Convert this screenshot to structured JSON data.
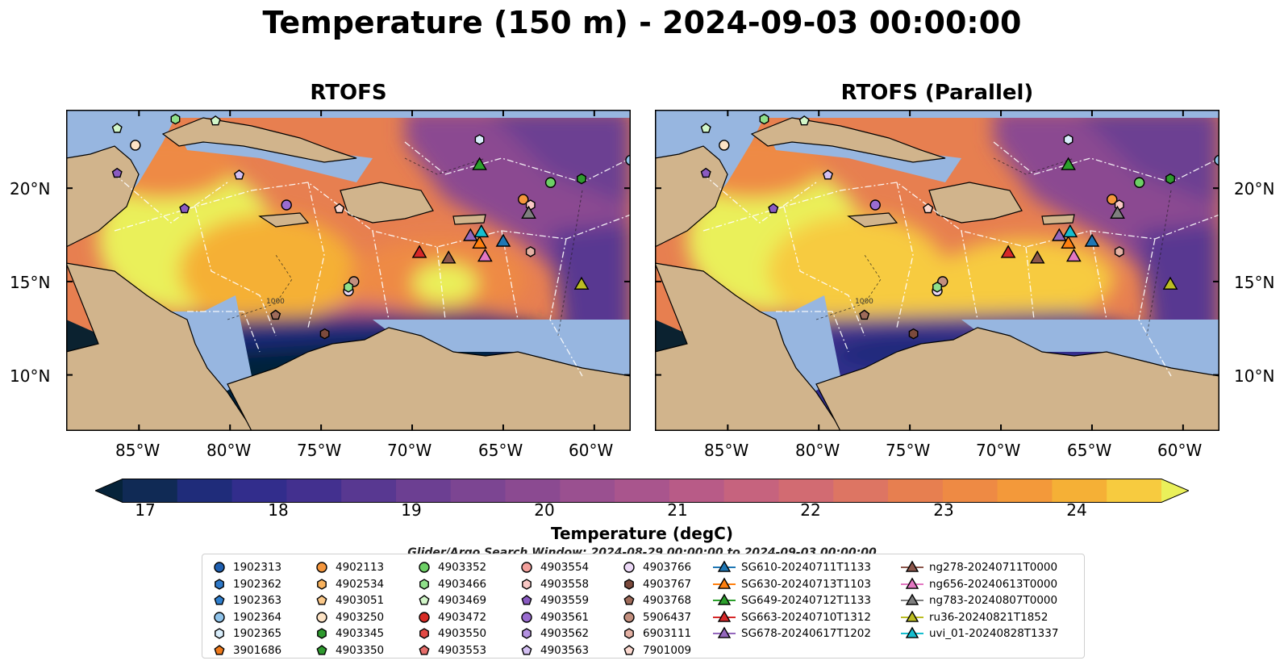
{
  "title": "Temperature (150 m) - 2024-09-03 00:00:00",
  "panels": [
    {
      "title": "RTOFS"
    },
    {
      "title": "RTOFS (Parallel)"
    }
  ],
  "axes": {
    "lon_labels": [
      "85°W",
      "80°W",
      "75°W",
      "70°W",
      "65°W",
      "60°W"
    ],
    "lat_labels": [
      "20°N",
      "15°N",
      "10°N"
    ]
  },
  "depth_contour_labels": [
    "1000"
  ],
  "colorbar": {
    "label": "Temperature (degC)",
    "ticks": [
      "17",
      "18",
      "19",
      "20",
      "21",
      "22",
      "23",
      "24"
    ],
    "range": [
      16.5,
      24.7
    ],
    "colors": [
      "#06233a",
      "#102a55",
      "#1f2c7a",
      "#322d8c",
      "#43308f",
      "#583891",
      "#6c3f92",
      "#7c4592",
      "#8b4a91",
      "#9a5090",
      "#a9558d",
      "#b85b87",
      "#c6637e",
      "#d26b72",
      "#dd7563",
      "#e77f50",
      "#ee8a44",
      "#f3993a",
      "#f5b036",
      "#f7cb3f",
      "#eaf05a"
    ],
    "extend": "both"
  },
  "search_window": "Glider/Argo Search Window: 2024-08-29 00:00:00 to 2024-09-03 00:00:00",
  "colors": {
    "land": "#d1b48c",
    "shelf": "#97b6e0",
    "deep_cold": "#0b2230"
  },
  "legend": {
    "columns": [
      [
        {
          "label": "1902313",
          "marker": "circle",
          "color": "#1f5fb0"
        },
        {
          "label": "1902362",
          "marker": "hexagon",
          "color": "#2e79c9"
        },
        {
          "label": "1902363",
          "marker": "pentagon",
          "color": "#2f7fce"
        },
        {
          "label": "1902364",
          "marker": "circle",
          "color": "#8fc3ea"
        },
        {
          "label": "1902365",
          "marker": "hexagon",
          "color": "#d9eefc"
        },
        {
          "label": "3901686",
          "marker": "pentagon",
          "color": "#ef7a1b"
        }
      ],
      [
        {
          "label": "4902113",
          "marker": "circle",
          "color": "#f4963d"
        },
        {
          "label": "4902534",
          "marker": "hexagon",
          "color": "#f8b25d"
        },
        {
          "label": "4903051",
          "marker": "pentagon",
          "color": "#fbc98a"
        },
        {
          "label": "4903250",
          "marker": "circle",
          "color": "#fde3c5"
        },
        {
          "label": "4903345",
          "marker": "hexagon",
          "color": "#2f9a2f"
        },
        {
          "label": "4903350",
          "marker": "pentagon",
          "color": "#2f9a2f"
        }
      ],
      [
        {
          "label": "4903352",
          "marker": "circle",
          "color": "#6ccf65"
        },
        {
          "label": "4903466",
          "marker": "hexagon",
          "color": "#8fe08a"
        },
        {
          "label": "4903469",
          "marker": "pentagon",
          "color": "#d2f6c9"
        },
        {
          "label": "4903472",
          "marker": "circle",
          "color": "#d72b24"
        },
        {
          "label": "4903550",
          "marker": "hexagon",
          "color": "#e34a45"
        },
        {
          "label": "4903553",
          "marker": "pentagon",
          "color": "#e66d6a"
        }
      ],
      [
        {
          "label": "4903554",
          "marker": "circle",
          "color": "#f3a09c"
        },
        {
          "label": "4903558",
          "marker": "hexagon",
          "color": "#f9c8c5"
        },
        {
          "label": "4903559",
          "marker": "pentagon",
          "color": "#8a5bc2"
        },
        {
          "label": "4903561",
          "marker": "circle",
          "color": "#9a6cd0"
        },
        {
          "label": "4903562",
          "marker": "hexagon",
          "color": "#b391e0"
        },
        {
          "label": "4903563",
          "marker": "pentagon",
          "color": "#d3bff2"
        }
      ],
      [
        {
          "label": "4903766",
          "marker": "circle",
          "color": "#ecd9f7"
        },
        {
          "label": "4903767",
          "marker": "hexagon",
          "color": "#7b4a3c"
        },
        {
          "label": "4903768",
          "marker": "pentagon",
          "color": "#9e6b5a"
        },
        {
          "label": "5906437",
          "marker": "circle",
          "color": "#c28f7e"
        },
        {
          "label": "6903111",
          "marker": "hexagon",
          "color": "#e4b1a4"
        },
        {
          "label": "7901009",
          "marker": "pentagon",
          "color": "#fbd8cf"
        }
      ],
      [
        {
          "label": "SG610-20240711T1133",
          "marker": "triangle",
          "color": "#1f77b4"
        },
        {
          "label": "SG630-20240713T1103",
          "marker": "triangle",
          "color": "#ff7f0e"
        },
        {
          "label": "SG649-20240712T1133",
          "marker": "triangle",
          "color": "#2ca02c"
        },
        {
          "label": "SG663-20240710T1312",
          "marker": "triangle",
          "color": "#d62728"
        },
        {
          "label": "SG678-20240617T1202",
          "marker": "triangle",
          "color": "#9467bd"
        }
      ],
      [
        {
          "label": "ng278-20240711T0000",
          "marker": "triangle",
          "color": "#8c564b"
        },
        {
          "label": "ng656-20240613T0000",
          "marker": "triangle",
          "color": "#e377c2"
        },
        {
          "label": "ng783-20240807T0000",
          "marker": "triangle",
          "color": "#7f7f7f"
        },
        {
          "label": "ru36-20240821T1852",
          "marker": "triangle",
          "color": "#bcbd22"
        },
        {
          "label": "uvi_01-20240828T1337",
          "marker": "triangle",
          "color": "#17becf"
        }
      ]
    ]
  },
  "gliders": [
    {
      "name": "SG610-20240711T1133",
      "lon": -65.0,
      "lat": 17.1
    },
    {
      "name": "SG630-20240713T1103",
      "lon": -66.3,
      "lat": 17.0
    },
    {
      "name": "SG649-20240712T1133",
      "lon": -66.3,
      "lat": 21.2
    },
    {
      "name": "SG663-20240710T1312",
      "lon": -69.6,
      "lat": 16.5
    },
    {
      "name": "SG678-20240617T1202",
      "lon": -66.8,
      "lat": 17.4
    },
    {
      "name": "ng278-20240711T0000",
      "lon": -68.0,
      "lat": 16.2
    },
    {
      "name": "ng656-20240613T0000",
      "lon": -66.0,
      "lat": 16.3
    },
    {
      "name": "ng783-20240807T0000",
      "lon": -63.6,
      "lat": 18.6
    },
    {
      "name": "ru36-20240821T1852",
      "lon": -60.7,
      "lat": 14.8
    },
    {
      "name": "uvi_01-20240828T1337",
      "lon": -66.2,
      "lat": 17.6
    }
  ],
  "floats": [
    {
      "name": "4902113",
      "lon": -63.9,
      "lat": 19.4
    },
    {
      "name": "4903352",
      "lon": -62.4,
      "lat": 20.3
    },
    {
      "name": "4903345",
      "lon": -60.7,
      "lat": 20.5
    },
    {
      "name": "1902365",
      "lon": -66.3,
      "lat": 22.6
    },
    {
      "name": "4903561",
      "lon": -76.9,
      "lat": 19.1
    },
    {
      "name": "4903559",
      "lon": -82.5,
      "lat": 18.9
    },
    {
      "name": "4903563",
      "lon": -79.5,
      "lat": 20.7
    },
    {
      "name": "4903250",
      "lon": -85.2,
      "lat": 22.3
    },
    {
      "name": "4903469",
      "lon": -86.2,
      "lat": 23.2
    },
    {
      "name": "4903466",
      "lon": -83.0,
      "lat": 23.7
    },
    {
      "name": "4903469",
      "lon": -80.8,
      "lat": 23.6
    },
    {
      "name": "4903559",
      "lon": -86.2,
      "lat": 20.8
    },
    {
      "name": "7901009",
      "lon": -74.0,
      "lat": 18.9
    },
    {
      "name": "5906437",
      "lon": -73.2,
      "lat": 15.0
    },
    {
      "name": "4903766",
      "lon": -73.5,
      "lat": 14.5
    },
    {
      "name": "4903466",
      "lon": -73.5,
      "lat": 14.7
    },
    {
      "name": "4903768",
      "lon": -77.5,
      "lat": 13.2
    },
    {
      "name": "4903767",
      "lon": -74.8,
      "lat": 12.2
    },
    {
      "name": "6903111",
      "lon": -63.5,
      "lat": 16.6
    },
    {
      "name": "4903558",
      "lon": -63.5,
      "lat": 19.1
    },
    {
      "name": "1902364",
      "lon": -58.0,
      "lat": 21.5
    }
  ]
}
